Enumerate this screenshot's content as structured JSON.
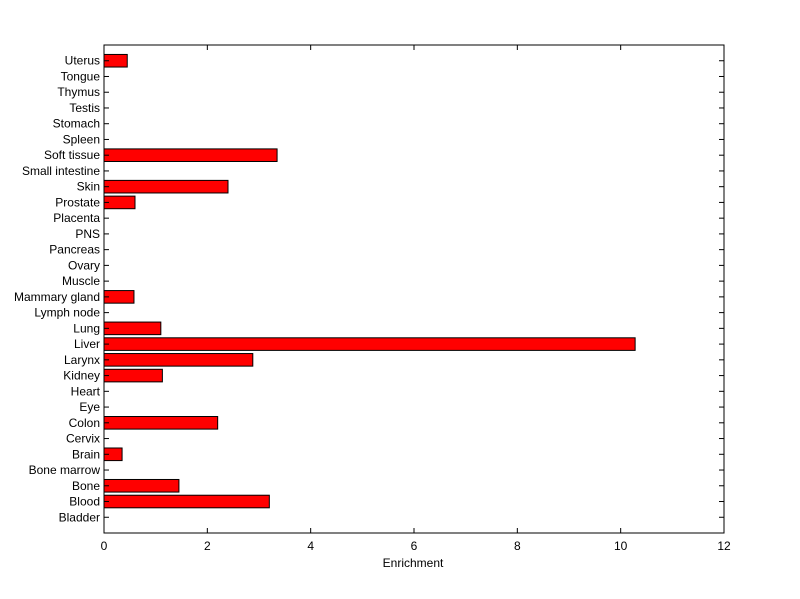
{
  "chart_data": {
    "type": "bar",
    "orientation": "horizontal",
    "title": "",
    "xlabel": "Enrichment",
    "ylabel": "",
    "xlim": [
      0,
      12
    ],
    "xticks": [
      0,
      2,
      4,
      6,
      8,
      10,
      12
    ],
    "grid": false,
    "legend": "none",
    "bar_color": "#ff0000",
    "edge_color": "#000000",
    "categories": [
      "Bladder",
      "Blood",
      "Bone",
      "Bone marrow",
      "Brain",
      "Cervix",
      "Colon",
      "Eye",
      "Heart",
      "Kidney",
      "Larynx",
      "Liver",
      "Lung",
      "Lymph node",
      "Mammary gland",
      "Muscle",
      "Ovary",
      "Pancreas",
      "PNS",
      "Placenta",
      "Prostate",
      "Skin",
      "Small intestine",
      "Soft tissue",
      "Spleen",
      "Stomach",
      "Testis",
      "Thymus",
      "Tongue",
      "Uterus"
    ],
    "values": [
      0,
      3.2,
      1.45,
      0,
      0.35,
      0,
      2.2,
      0,
      0,
      1.13,
      2.88,
      10.28,
      1.1,
      0,
      0.58,
      0,
      0,
      0,
      0,
      0,
      0.6,
      2.4,
      0,
      3.35,
      0,
      0,
      0,
      0,
      0,
      0.45
    ]
  }
}
